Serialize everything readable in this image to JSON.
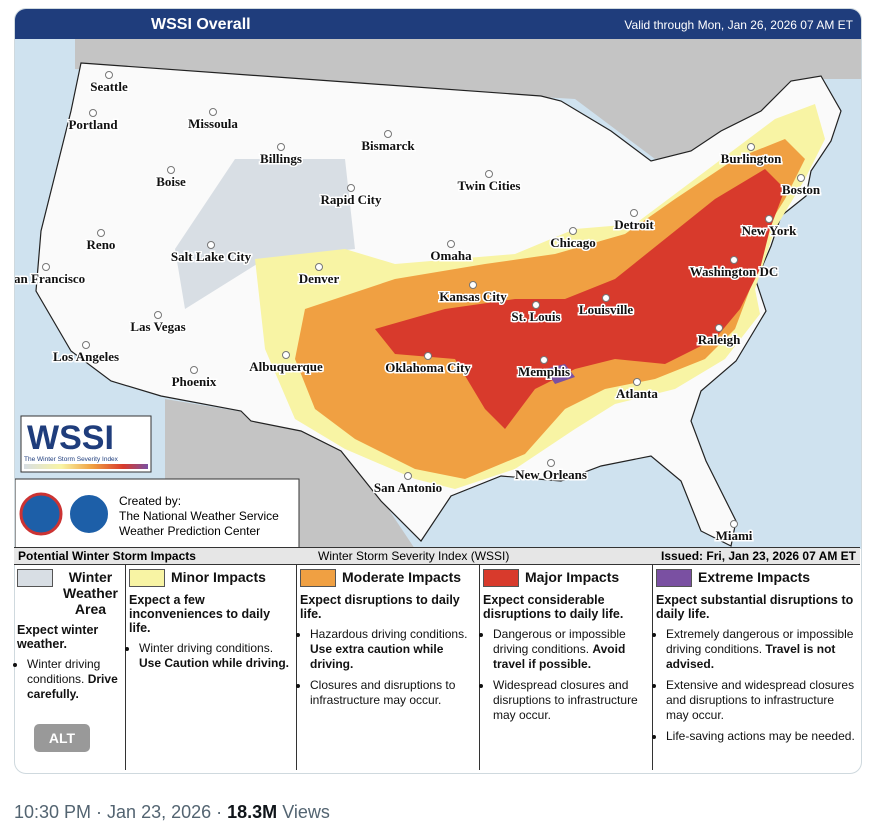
{
  "header": {
    "title": "WSSI Overall",
    "valid": "Valid through Mon, Jan 26, 2026 07 AM ET"
  },
  "cities": [
    "Seattle",
    "Portland",
    "Missoula",
    "Billings",
    "Bismarck",
    "Boise",
    "Rapid City",
    "Twin Cities",
    "Burlington",
    "Boston",
    "Detroit",
    "Reno",
    "Salt Lake City",
    "Chicago",
    "Omaha",
    "New York",
    "San Francisco",
    "Denver",
    "Kansas City",
    "St. Louis",
    "Washington DC",
    "Louisville",
    "Las Vegas",
    "Los Angeles",
    "Albuquerque",
    "Oklahoma City",
    "Memphis",
    "Raleigh",
    "Phoenix",
    "Atlanta",
    "San Antonio",
    "New Orleans",
    "Miami"
  ],
  "logo": {
    "title": "WSSI",
    "subtitle": "The Winter Storm Severity Index"
  },
  "credit": {
    "lines": [
      "Created by:",
      "The National Weather Service",
      "Weather Prediction Center"
    ]
  },
  "legend_bar": {
    "left": "Potential Winter Storm Impacts",
    "center": "Winter Storm Severity Index (WSSI)",
    "right": "Issued: Fri, Jan 23, 2026 07 AM ET"
  },
  "legend": [
    {
      "title": "Winter Weather Area",
      "color": "#d8dee4",
      "lead": "Expect winter weather.",
      "bullets": [
        {
          "text": "Winter driving conditions.",
          "strong": "Drive carefully."
        }
      ]
    },
    {
      "title": "Minor Impacts",
      "color": "#f8f4a4",
      "lead": "Expect a few inconveniences to daily life.",
      "bullets": [
        {
          "text": "Winter driving conditions.",
          "strong": "Use Caution while driving."
        }
      ]
    },
    {
      "title": "Moderate Impacts",
      "color": "#f0a042",
      "lead": "Expect disruptions to daily life.",
      "bullets": [
        {
          "text": "Hazardous driving conditions.",
          "strong": "Use extra caution while driving."
        },
        {
          "text": "Closures and disruptions to infrastructure may occur."
        }
      ]
    },
    {
      "title": "Major Impacts",
      "color": "#d83a2c",
      "lead": "Expect considerable disruptions to daily life.",
      "bullets": [
        {
          "text": "Dangerous or impossible driving conditions.",
          "strong": "Avoid travel if possible."
        },
        {
          "text": "Widespread closures and disruptions to infrastructure may occur."
        }
      ]
    },
    {
      "title": "Extreme Impacts",
      "color": "#7a50a2",
      "lead": "Expect substantial disruptions to daily life.",
      "bullets": [
        {
          "text": "Extremely dangerous or impossible driving conditions.",
          "strong": "Travel is not advised."
        },
        {
          "text": "Extensive and widespread closures and disruptions to infrastructure may occur."
        },
        {
          "text": "Life-saving actions may be needed."
        }
      ]
    }
  ],
  "alt": "ALT",
  "footer": {
    "time": "10:30 PM · Jan 23, 2026 ·",
    "views_count": "18.3M",
    "views_label": "Views"
  }
}
